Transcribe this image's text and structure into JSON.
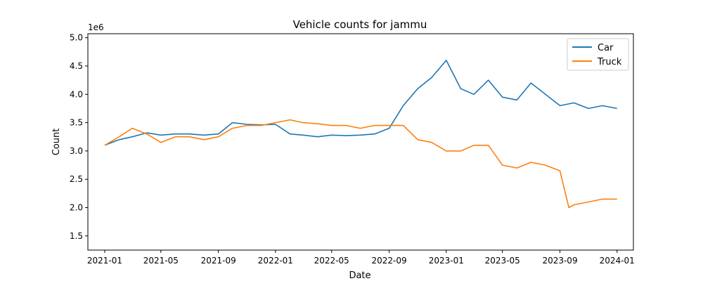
{
  "chart_data": {
    "type": "line",
    "title": "Vehicle counts for jammu",
    "xlabel": "Date",
    "ylabel": "Count",
    "y_offset_label": "1e6",
    "y_multiplier": 1000000,
    "xlim": [
      "2020-11-26",
      "2024-02-05"
    ],
    "ylim": [
      1.25,
      5.07
    ],
    "x_ticks": [
      "2021-01-01",
      "2021-05-01",
      "2021-09-01",
      "2022-01-01",
      "2022-05-01",
      "2022-09-01",
      "2023-01-01",
      "2023-05-01",
      "2023-09-01",
      "2024-01-01"
    ],
    "x_tick_labels": [
      "2021-01",
      "2021-05",
      "2021-09",
      "2022-01",
      "2022-05",
      "2022-09",
      "2023-01",
      "2023-05",
      "2023-09",
      "2024-01"
    ],
    "y_ticks": [
      1.5,
      2.0,
      2.5,
      3.0,
      3.5,
      4.0,
      4.5,
      5.0
    ],
    "y_tick_labels": [
      "1.5",
      "2.0",
      "2.5",
      "3.0",
      "3.5",
      "4.0",
      "4.5",
      "5.0"
    ],
    "grid": false,
    "legend": "top-right",
    "series": [
      {
        "name": "Car",
        "color": "#1f77b4",
        "x": [
          "2021-01-01",
          "2021-02-01",
          "2021-03-01",
          "2021-04-01",
          "2021-05-01",
          "2021-06-01",
          "2021-07-01",
          "2021-08-01",
          "2021-09-01",
          "2021-10-01",
          "2021-11-01",
          "2021-12-01",
          "2022-01-01",
          "2022-02-01",
          "2022-03-01",
          "2022-04-01",
          "2022-05-01",
          "2022-06-01",
          "2022-07-01",
          "2022-08-01",
          "2022-09-01",
          "2022-10-01",
          "2022-11-01",
          "2022-12-01",
          "2023-01-01",
          "2023-02-01",
          "2023-03-01",
          "2023-04-01",
          "2023-05-01",
          "2023-06-01",
          "2023-07-01",
          "2023-08-01",
          "2023-09-01",
          "2023-10-01",
          "2023-11-01",
          "2023-12-01",
          "2024-01-01"
        ],
        "y": [
          3.1,
          3.2,
          3.25,
          3.32,
          3.28,
          3.3,
          3.3,
          3.28,
          3.3,
          3.5,
          3.47,
          3.46,
          3.47,
          3.3,
          3.28,
          3.25,
          3.28,
          3.27,
          3.28,
          3.3,
          3.4,
          3.8,
          4.1,
          4.3,
          4.6,
          4.1,
          4.0,
          4.25,
          3.95,
          3.9,
          4.2,
          4.0,
          3.8,
          3.85,
          3.75,
          3.8,
          3.75
        ]
      },
      {
        "name": "Truck",
        "color": "#ff7f0e",
        "x": [
          "2021-01-01",
          "2021-02-01",
          "2021-03-01",
          "2021-04-01",
          "2021-05-01",
          "2021-06-01",
          "2021-07-01",
          "2021-08-01",
          "2021-09-01",
          "2021-10-01",
          "2021-11-01",
          "2021-12-01",
          "2022-01-01",
          "2022-02-01",
          "2022-03-01",
          "2022-04-01",
          "2022-05-01",
          "2022-06-01",
          "2022-07-01",
          "2022-08-01",
          "2022-09-01",
          "2022-10-01",
          "2022-11-01",
          "2022-12-01",
          "2023-01-01",
          "2023-02-01",
          "2023-03-01",
          "2023-04-01",
          "2023-05-01",
          "2023-06-01",
          "2023-07-01",
          "2023-08-01",
          "2023-09-01",
          "2023-09-20",
          "2023-10-01",
          "2023-11-01",
          "2023-12-01",
          "2024-01-01"
        ],
        "y": [
          3.1,
          3.25,
          3.4,
          3.3,
          3.15,
          3.25,
          3.25,
          3.2,
          3.25,
          3.4,
          3.45,
          3.45,
          3.5,
          3.55,
          3.5,
          3.48,
          3.45,
          3.45,
          3.4,
          3.45,
          3.45,
          3.45,
          3.2,
          3.15,
          3.0,
          3.0,
          3.1,
          3.1,
          2.75,
          2.7,
          2.8,
          2.75,
          2.65,
          2.0,
          2.05,
          2.1,
          2.15,
          2.15
        ]
      }
    ]
  }
}
